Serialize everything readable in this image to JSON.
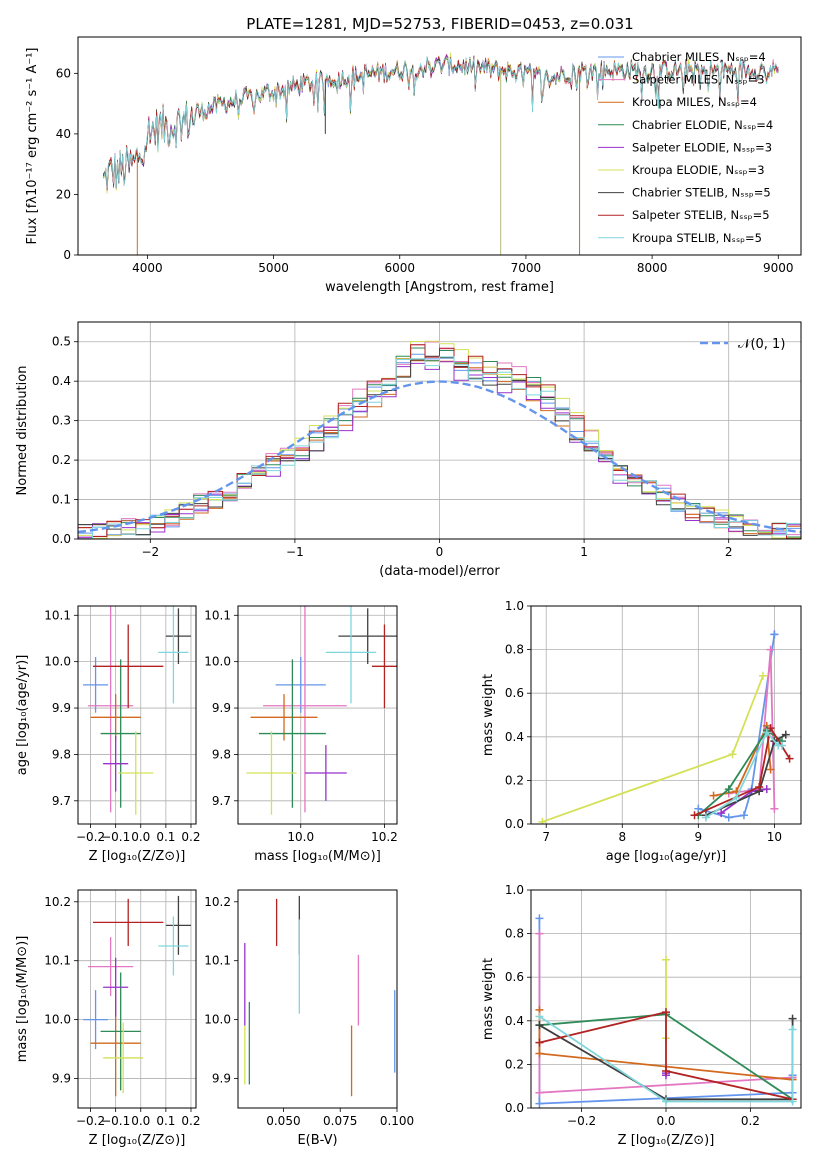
{
  "figure": {
    "title": "PLATE=1281, MJD=52753, FIBERID=0453, z=0.031"
  },
  "chart_data": [
    {
      "type": "line",
      "panel": "spectrum",
      "xlabel": "wavelength [Angstrom, rest frame]",
      "ylabel": "Flux [fλ10⁻¹⁷ erg cm⁻² s⁻¹ A⁻¹]",
      "xlim": [
        3450,
        9180
      ],
      "ylim": [
        0,
        72
      ],
      "xticks": [
        4000,
        5000,
        6000,
        7000,
        8000,
        9000
      ],
      "yticks": [
        0,
        20,
        40,
        60
      ],
      "grid": false,
      "legend_position": "right",
      "series": [
        {
          "name": "Chabrier MILES, Nₛₛₚ=4",
          "color": "#6495ed"
        },
        {
          "name": "Salpeter MILES, Nₛₛₚ=3",
          "color": "#e377c2"
        },
        {
          "name": "Kroupa MILES, Nₛₛₚ=4",
          "color": "#d2691e"
        },
        {
          "name": "Chabrier ELODIE, Nₛₛₚ=4",
          "color": "#2e8b57"
        },
        {
          "name": "Salpeter ELODIE, Nₛₛₚ=3",
          "color": "#9932cc"
        },
        {
          "name": "Kroupa ELODIE, Nₛₛₚ=3",
          "color": "#d4e157"
        },
        {
          "name": "Chabrier STELIB, Nₛₛₚ=5",
          "color": "#404040"
        },
        {
          "name": "Salpeter STELIB, Nₛₛₚ=5",
          "color": "#b22222"
        },
        {
          "name": "Kroupa STELIB, Nₛₛₚ=5",
          "color": "#7fd6dc"
        }
      ],
      "continuum": {
        "x": [
          3650,
          3700,
          3800,
          3900,
          4000,
          4100,
          4200,
          4300,
          4400,
          4600,
          4800,
          5000,
          5200,
          5400,
          5600,
          5800,
          6000,
          6200,
          6400,
          6600,
          6800,
          7000,
          7100,
          7200,
          7300,
          7500,
          7800,
          8000,
          8500,
          9000
        ],
        "y": [
          24,
          27,
          28,
          30,
          40,
          42,
          43,
          44,
          47,
          50,
          52,
          54,
          56,
          58,
          59,
          60,
          61,
          62,
          63,
          62,
          61,
          60,
          59,
          58,
          60,
          61,
          61,
          61,
          61,
          61
        ]
      },
      "spikes": [
        {
          "x": 3920,
          "y": 0,
          "color": "#d2691e"
        },
        {
          "x": 5410,
          "y": 40,
          "color": "#404040"
        },
        {
          "x": 6800,
          "y": 0,
          "color": "#b5b87a"
        },
        {
          "x": 7425,
          "y": 0,
          "color": "#d2691e"
        }
      ]
    },
    {
      "type": "histogram",
      "panel": "residuals",
      "xlabel": "(data-model)/error",
      "ylabel": "Normed distribution",
      "xlim": [
        -2.5,
        2.5
      ],
      "ylim": [
        0,
        0.55
      ],
      "xticks": [
        -2,
        -1,
        0,
        1,
        2
      ],
      "yticks": [
        0.0,
        0.1,
        0.2,
        0.3,
        0.4,
        0.5
      ],
      "grid": true,
      "legend_position": "top-right",
      "bin_width": 0.1,
      "reference_curve": {
        "name": "𝒩(0, 1)",
        "color": "#6495ed",
        "style": "dashed"
      },
      "base_distribution": [
        0.02,
        0.02,
        0.025,
        0.03,
        0.03,
        0.04,
        0.05,
        0.07,
        0.09,
        0.1,
        0.12,
        0.14,
        0.17,
        0.19,
        0.2,
        0.22,
        0.25,
        0.28,
        0.31,
        0.34,
        0.37,
        0.4,
        0.44,
        0.47,
        0.46,
        0.45,
        0.44,
        0.43,
        0.42,
        0.41,
        0.4,
        0.38,
        0.36,
        0.32,
        0.28,
        0.24,
        0.2,
        0.17,
        0.15,
        0.13,
        0.11,
        0.09,
        0.07,
        0.06,
        0.05,
        0.04,
        0.03,
        0.025,
        0.02,
        0.02
      ],
      "series_offsets": [
        0.0,
        0.02,
        -0.015,
        0.01,
        -0.02,
        0.025,
        -0.01,
        0.015,
        -0.005
      ]
    },
    {
      "type": "scatter",
      "panel": "age-vs-Z",
      "xlabel": "Z [log₁₀(Z/Z⊙)]",
      "ylabel": "age  [log₁₀(age/yr)]",
      "xlim": [
        -0.25,
        0.22
      ],
      "ylim": [
        9.65,
        10.12
      ],
      "xticks": [
        -0.2,
        -0.1,
        0.0,
        0.1,
        0.2
      ],
      "yticks": [
        9.7,
        9.8,
        9.9,
        10.0,
        10.1
      ],
      "grid": true,
      "points": [
        {
          "x": -0.18,
          "xerr": 0.05,
          "y": 9.95,
          "yerr": 0.06,
          "series": 0
        },
        {
          "x": -0.12,
          "xerr": 0.09,
          "y": 9.905,
          "yerr": 0.23,
          "series": 1
        },
        {
          "x": -0.1,
          "xerr": 0.1,
          "y": 9.88,
          "yerr": 0.05,
          "series": 2
        },
        {
          "x": -0.08,
          "xerr": 0.08,
          "y": 9.845,
          "yerr": 0.16,
          "series": 3
        },
        {
          "x": -0.1,
          "xerr": 0.05,
          "y": 9.78,
          "yerr": 0.06,
          "series": 4
        },
        {
          "x": -0.02,
          "xerr": 0.07,
          "y": 9.76,
          "yerr": 0.09,
          "series": 5
        },
        {
          "x": 0.15,
          "xerr": 0.05,
          "y": 10.055,
          "yerr": 0.06,
          "series": 6
        },
        {
          "x": -0.05,
          "xerr": 0.14,
          "y": 9.99,
          "yerr": 0.09,
          "series": 7
        },
        {
          "x": 0.13,
          "xerr": 0.06,
          "y": 10.02,
          "yerr": 0.11,
          "series": 8
        }
      ]
    },
    {
      "type": "scatter",
      "panel": "age-vs-mass",
      "xlabel": "mass [log₁₀(M/M⊙)]",
      "ylabel": "",
      "xlim": [
        9.85,
        10.23
      ],
      "ylim": [
        9.65,
        10.12
      ],
      "xticks": [
        9.8,
        10.0,
        10.2
      ],
      "yticks": [
        9.7,
        9.8,
        9.9,
        10.0,
        10.1
      ],
      "grid": true,
      "points": [
        {
          "x": 10.0,
          "xerr": 0.06,
          "y": 9.95,
          "yerr": 0.06,
          "series": 0
        },
        {
          "x": 10.01,
          "xerr": 0.1,
          "y": 9.905,
          "yerr": 0.23,
          "series": 1
        },
        {
          "x": 9.96,
          "xerr": 0.08,
          "y": 9.88,
          "yerr": 0.05,
          "series": 2
        },
        {
          "x": 9.98,
          "xerr": 0.08,
          "y": 9.845,
          "yerr": 0.16,
          "series": 3
        },
        {
          "x": 10.06,
          "xerr": 0.05,
          "y": 9.76,
          "yerr": 0.06,
          "series": 4
        },
        {
          "x": 9.93,
          "xerr": 0.06,
          "y": 9.76,
          "yerr": 0.09,
          "series": 5
        },
        {
          "x": 10.16,
          "xerr": 0.07,
          "y": 10.055,
          "yerr": 0.06,
          "series": 6
        },
        {
          "x": 10.2,
          "xerr": 0.03,
          "y": 9.99,
          "yerr": 0.09,
          "series": 7
        },
        {
          "x": 10.12,
          "xerr": 0.06,
          "y": 10.02,
          "yerr": 0.11,
          "series": 8
        }
      ]
    },
    {
      "type": "line",
      "panel": "mass-weight-vs-age",
      "xlabel": "age  [log₁₀(age/yr)]",
      "ylabel": "mass weight",
      "xlim": [
        6.8,
        10.35
      ],
      "ylim": [
        0,
        1
      ],
      "xticks": [
        7,
        8,
        9,
        10
      ],
      "yticks": [
        0.0,
        0.2,
        0.4,
        0.6,
        0.8,
        1.0
      ],
      "grid": true,
      "series": [
        {
          "series": 0,
          "x": [
            9.0,
            9.4,
            9.6,
            9.7,
            10.0,
            10.0
          ],
          "y": [
            0.07,
            0.03,
            0.04,
            0.16,
            0.87,
            0.87
          ]
        },
        {
          "series": 1,
          "x": [
            9.4,
            9.8,
            9.95,
            10.0
          ],
          "y": [
            0.14,
            0.16,
            0.8,
            0.07
          ]
        },
        {
          "series": 2,
          "x": [
            9.2,
            9.5,
            9.9,
            9.95
          ],
          "y": [
            0.13,
            0.15,
            0.45,
            0.25
          ]
        },
        {
          "series": 3,
          "x": [
            9.0,
            9.4,
            9.9,
            10.1
          ],
          "y": [
            0.04,
            0.16,
            0.43,
            0.38
          ]
        },
        {
          "series": 4,
          "x": [
            9.3,
            9.7,
            9.9
          ],
          "y": [
            0.05,
            0.15,
            0.16
          ]
        },
        {
          "series": 5,
          "x": [
            6.95,
            9.45,
            9.85
          ],
          "y": [
            0.01,
            0.32,
            0.68
          ]
        },
        {
          "series": 6,
          "x": [
            9.1,
            9.8,
            10.0,
            10.15
          ],
          "y": [
            0.04,
            0.15,
            0.38,
            0.41
          ]
        },
        {
          "series": 7,
          "x": [
            8.95,
            9.8,
            9.95,
            10.2
          ],
          "y": [
            0.04,
            0.17,
            0.44,
            0.3
          ]
        },
        {
          "series": 8,
          "x": [
            9.1,
            9.5,
            9.9,
            10.05,
            10.1
          ],
          "y": [
            0.03,
            0.12,
            0.42,
            0.36,
            0.36
          ]
        }
      ]
    },
    {
      "type": "scatter",
      "panel": "mass-vs-Z",
      "xlabel": "Z [log₁₀(Z/Z⊙)]",
      "ylabel": "mass [log₁₀(M/M⊙)]",
      "xlim": [
        -0.25,
        0.22
      ],
      "ylim": [
        9.85,
        10.22
      ],
      "xticks": [
        -0.2,
        -0.1,
        0.0,
        0.1,
        0.2
      ],
      "yticks": [
        9.9,
        10.0,
        10.1,
        10.2
      ],
      "grid": true,
      "points": [
        {
          "x": -0.18,
          "xerr": 0.05,
          "y": 10.0,
          "yerr": 0.05,
          "series": 0
        },
        {
          "x": -0.12,
          "xerr": 0.09,
          "y": 10.09,
          "yerr": 0.05,
          "series": 1
        },
        {
          "x": -0.1,
          "xerr": 0.1,
          "y": 9.96,
          "yerr": 0.09,
          "series": 2
        },
        {
          "x": -0.08,
          "xerr": 0.08,
          "y": 9.98,
          "yerr": 0.1,
          "series": 3
        },
        {
          "x": -0.1,
          "xerr": 0.05,
          "y": 10.055,
          "yerr": 0.05,
          "series": 4
        },
        {
          "x": -0.07,
          "xerr": 0.08,
          "y": 9.935,
          "yerr": 0.06,
          "series": 5
        },
        {
          "x": 0.15,
          "xerr": 0.05,
          "y": 10.16,
          "yerr": 0.05,
          "series": 6
        },
        {
          "x": -0.05,
          "xerr": 0.14,
          "y": 10.165,
          "yerr": 0.04,
          "series": 7
        },
        {
          "x": 0.13,
          "xerr": 0.06,
          "y": 10.125,
          "yerr": 0.05,
          "series": 8
        }
      ]
    },
    {
      "type": "scatter",
      "panel": "mass-vs-EBV",
      "xlabel": "E(B-V)",
      "ylabel": "",
      "xlim": [
        0.03,
        0.1
      ],
      "ylim": [
        9.85,
        10.22
      ],
      "xticks": [
        0.05,
        0.075,
        0.1
      ],
      "xtick_labels": [
        "0.050",
        "0.075",
        "0.100"
      ],
      "yticks": [
        9.9,
        10.0,
        10.1,
        10.2
      ],
      "grid": false,
      "points": [
        {
          "x": 0.099,
          "y": 9.98,
          "yerr": 0.07,
          "series": 0
        },
        {
          "x": 0.083,
          "y": 10.05,
          "yerr": 0.06,
          "series": 1
        },
        {
          "x": 0.08,
          "y": 9.93,
          "yerr": 0.06,
          "series": 2
        },
        {
          "x": 0.035,
          "y": 9.96,
          "yerr": 0.07,
          "series": 3
        },
        {
          "x": 0.033,
          "y": 10.06,
          "yerr": 0.07,
          "series": 4
        },
        {
          "x": 0.033,
          "y": 9.94,
          "yerr": 0.05,
          "series": 5
        },
        {
          "x": 0.057,
          "y": 10.16,
          "yerr": 0.05,
          "series": 6
        },
        {
          "x": 0.047,
          "y": 10.165,
          "yerr": 0.04,
          "series": 7
        },
        {
          "x": 0.057,
          "y": 10.09,
          "yerr": 0.08,
          "series": 8
        }
      ]
    },
    {
      "type": "line",
      "panel": "mass-weight-vs-Z",
      "xlabel": "Z [log₁₀(Z/Z⊙)]",
      "ylabel": "mass weight",
      "xlim": [
        -0.32,
        0.32
      ],
      "ylim": [
        0,
        1
      ],
      "xticks": [
        -0.2,
        0.0,
        0.2
      ],
      "yticks": [
        0.0,
        0.2,
        0.4,
        0.6,
        0.8,
        1.0
      ],
      "grid": true,
      "series": [
        {
          "series": 0,
          "x": [
            -0.3,
            -0.3,
            0.3,
            0.3
          ],
          "y": [
            0.87,
            0.02,
            0.07,
            0.15
          ]
        },
        {
          "series": 1,
          "x": [
            -0.3,
            -0.3,
            0.3,
            0.3
          ],
          "y": [
            0.8,
            0.07,
            0.14,
            0.14
          ]
        },
        {
          "series": 2,
          "x": [
            -0.3,
            -0.3,
            0.3
          ],
          "y": [
            0.45,
            0.25,
            0.13
          ]
        },
        {
          "series": 3,
          "x": [
            -0.3,
            0.0,
            0.3
          ],
          "y": [
            0.38,
            0.43,
            0.04
          ]
        },
        {
          "series": 4,
          "x": [
            0.0,
            0.0
          ],
          "y": [
            0.15,
            0.16
          ]
        },
        {
          "series": 5,
          "x": [
            0.0,
            0.0
          ],
          "y": [
            0.68,
            0.32
          ]
        },
        {
          "series": 6,
          "x": [
            -0.3,
            0.0,
            0.3,
            0.3
          ],
          "y": [
            0.38,
            0.04,
            0.04,
            0.41
          ]
        },
        {
          "series": 7,
          "x": [
            -0.3,
            0.0,
            0.0,
            0.3
          ],
          "y": [
            0.3,
            0.44,
            0.17,
            0.04
          ]
        },
        {
          "series": 8,
          "x": [
            -0.3,
            0.0,
            0.3,
            0.3
          ],
          "y": [
            0.42,
            0.03,
            0.03,
            0.36
          ]
        }
      ]
    }
  ]
}
